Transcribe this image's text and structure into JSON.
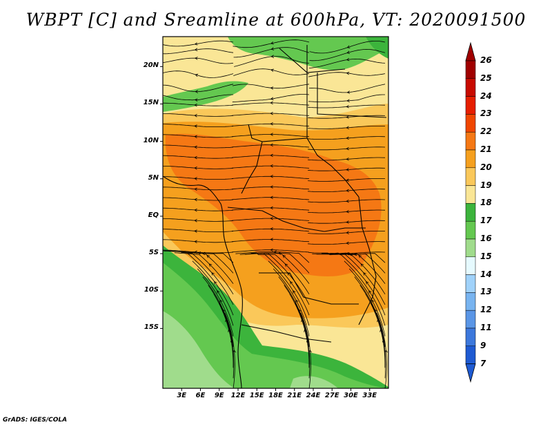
{
  "title": "WBPT [C] and Sreamline at 600hPa, VT: 2020091500",
  "credit": "GrADS: IGES/COLA",
  "map": {
    "type": "filled contour map with streamlines",
    "variable": "Wet-bulb potential temperature",
    "units": "C",
    "level": "600hPa",
    "valid_time": "2020091500",
    "lon_range": [
      0,
      36
    ],
    "lat_range": [
      -23,
      24
    ],
    "y_ticks": [
      {
        "label": "20N",
        "lat": 20
      },
      {
        "label": "15N",
        "lat": 15
      },
      {
        "label": "10N",
        "lat": 10
      },
      {
        "label": "5N",
        "lat": 5
      },
      {
        "label": "EQ",
        "lat": 0
      },
      {
        "label": "5S",
        "lat": -5
      },
      {
        "label": "10S",
        "lat": -10
      },
      {
        "label": "15S",
        "lat": -15
      }
    ],
    "x_ticks": [
      {
        "label": "3E",
        "lon": 3
      },
      {
        "label": "6E",
        "lon": 6
      },
      {
        "label": "9E",
        "lon": 9
      },
      {
        "label": "12E",
        "lon": 12
      },
      {
        "label": "15E",
        "lon": 15
      },
      {
        "label": "18E",
        "lon": 18
      },
      {
        "label": "21E",
        "lon": 21
      },
      {
        "label": "24E",
        "lon": 24
      },
      {
        "label": "27E",
        "lon": 27
      },
      {
        "label": "30E",
        "lon": 30
      },
      {
        "label": "33E",
        "lon": 33
      }
    ]
  },
  "colorbar": {
    "labels": [
      "26",
      "25",
      "24",
      "23",
      "22",
      "21",
      "20",
      "19",
      "18",
      "17",
      "16",
      "15",
      "14",
      "13",
      "12",
      "11",
      "9",
      "7"
    ],
    "colors": [
      "#a00000",
      "#c80a00",
      "#e61e00",
      "#f04600",
      "#f57814",
      "#f5a01e",
      "#fac85a",
      "#fae696",
      "#3cb43c",
      "#64c850",
      "#a0dc8c",
      "#e6faff",
      "#a0d2fa",
      "#78b4f0",
      "#5a96e6",
      "#3c78dc",
      "#1e5ad2"
    ],
    "top_arrow_color": "#a00000",
    "bottom_arrow_color": "#1e5ad2"
  }
}
